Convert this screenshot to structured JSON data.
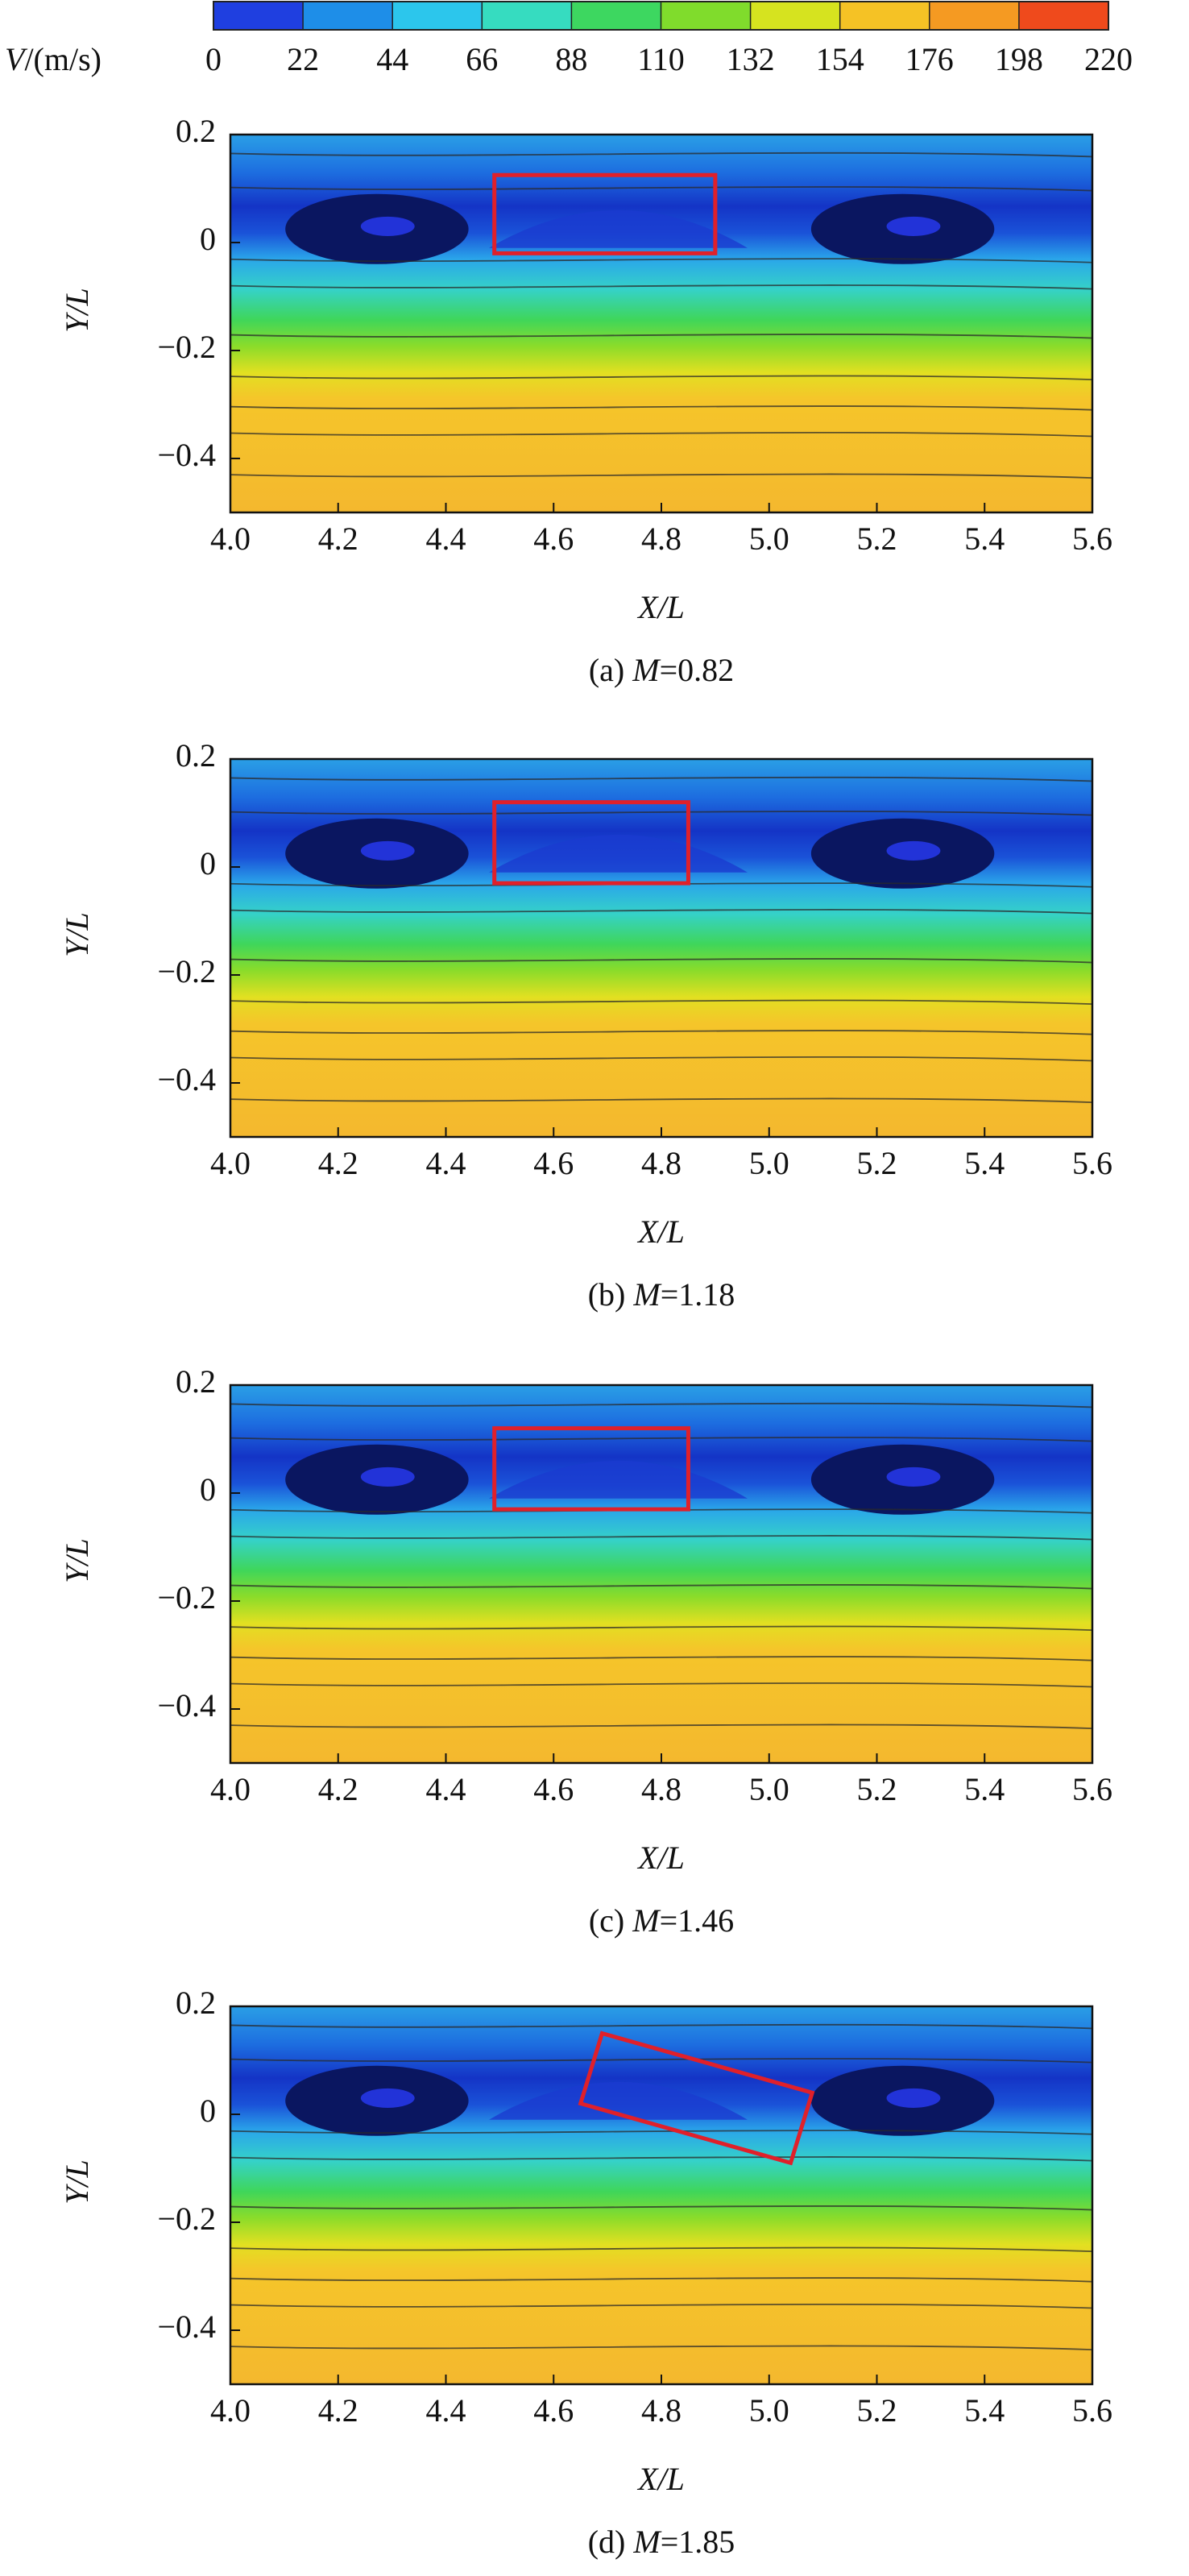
{
  "colorbar": {
    "var": "V",
    "unit": "/(m/s)",
    "lim": [
      0,
      220
    ],
    "ticks": [
      0,
      22,
      44,
      66,
      88,
      110,
      132,
      154,
      176,
      198,
      220
    ],
    "colors": [
      "#1f3fe0",
      "#1e8ee8",
      "#2cc6ec",
      "#36dcc0",
      "#3dd760",
      "#80dc2c",
      "#d6e31f",
      "#f5c225",
      "#f59a22",
      "#ef4a1c"
    ]
  },
  "chart_data": [
    {
      "type": "contour",
      "caption_label": "(a) ",
      "caption_var": "M",
      "caption_value": "=0.82",
      "xlabel": "X/L",
      "ylabel": "Y/L",
      "xlim": [
        4.0,
        5.6
      ],
      "xticks": [
        {
          "value": 4.0,
          "label": "4.0"
        },
        4.2,
        4.4,
        4.6,
        4.8,
        {
          "value": 5.0,
          "label": "5.0"
        },
        5.2,
        5.4,
        5.6
      ],
      "ylim": [
        -0.5,
        0.2
      ],
      "yticks": [
        0.2,
        0,
        {
          "value": -0.2,
          "label": "−0.2"
        },
        {
          "value": -0.4,
          "label": "−0.4"
        }
      ],
      "box": {
        "color": "#e0202a",
        "x": [
          4.49,
          4.9,
          4.9,
          4.49
        ],
        "y": [
          0.125,
          0.125,
          -0.02,
          -0.02
        ]
      }
    },
    {
      "type": "contour",
      "caption_label": "(b) ",
      "caption_var": "M",
      "caption_value": "=1.18",
      "xlabel": "X/L",
      "ylabel": "Y/L",
      "xlim": [
        4.0,
        5.6
      ],
      "xticks": [
        {
          "value": 4.0,
          "label": "4.0"
        },
        4.2,
        4.4,
        4.6,
        4.8,
        {
          "value": 5.0,
          "label": "5.0"
        },
        5.2,
        5.4,
        5.6
      ],
      "ylim": [
        -0.5,
        0.2
      ],
      "yticks": [
        0.2,
        0,
        {
          "value": -0.2,
          "label": "−0.2"
        },
        {
          "value": -0.4,
          "label": "−0.4"
        }
      ],
      "box": {
        "color": "#e0202a",
        "x": [
          4.49,
          4.85,
          4.85,
          4.49
        ],
        "y": [
          0.12,
          0.12,
          -0.03,
          -0.03
        ]
      }
    },
    {
      "type": "contour",
      "caption_label": "(c) ",
      "caption_var": "M",
      "caption_value": "=1.46",
      "xlabel": "X/L",
      "ylabel": "Y/L",
      "xlim": [
        4.0,
        5.6
      ],
      "xticks": [
        {
          "value": 4.0,
          "label": "4.0"
        },
        4.2,
        4.4,
        4.6,
        4.8,
        {
          "value": 5.0,
          "label": "5.0"
        },
        5.2,
        5.4,
        5.6
      ],
      "ylim": [
        -0.5,
        0.2
      ],
      "yticks": [
        0.2,
        0,
        {
          "value": -0.2,
          "label": "−0.2"
        },
        {
          "value": -0.4,
          "label": "−0.4"
        }
      ],
      "box": {
        "color": "#e0202a",
        "x": [
          4.49,
          4.85,
          4.85,
          4.49
        ],
        "y": [
          0.12,
          0.12,
          -0.03,
          -0.03
        ]
      }
    },
    {
      "type": "contour",
      "caption_label": "(d) ",
      "caption_var": "M",
      "caption_value": "=1.85",
      "xlabel": "X/L",
      "ylabel": "Y/L",
      "xlim": [
        4.0,
        5.6
      ],
      "xticks": [
        {
          "value": 4.0,
          "label": "4.0"
        },
        4.2,
        4.4,
        4.6,
        4.8,
        {
          "value": 5.0,
          "label": "5.0"
        },
        5.2,
        5.4,
        5.6
      ],
      "ylim": [
        -0.5,
        0.2
      ],
      "yticks": [
        0.2,
        0,
        {
          "value": -0.2,
          "label": "−0.2"
        },
        {
          "value": -0.4,
          "label": "−0.4"
        }
      ],
      "box": {
        "color": "#e0202a",
        "x": [
          4.69,
          5.08,
          5.04,
          4.65
        ],
        "y": [
          0.15,
          0.04,
          -0.09,
          0.02
        ]
      }
    }
  ]
}
